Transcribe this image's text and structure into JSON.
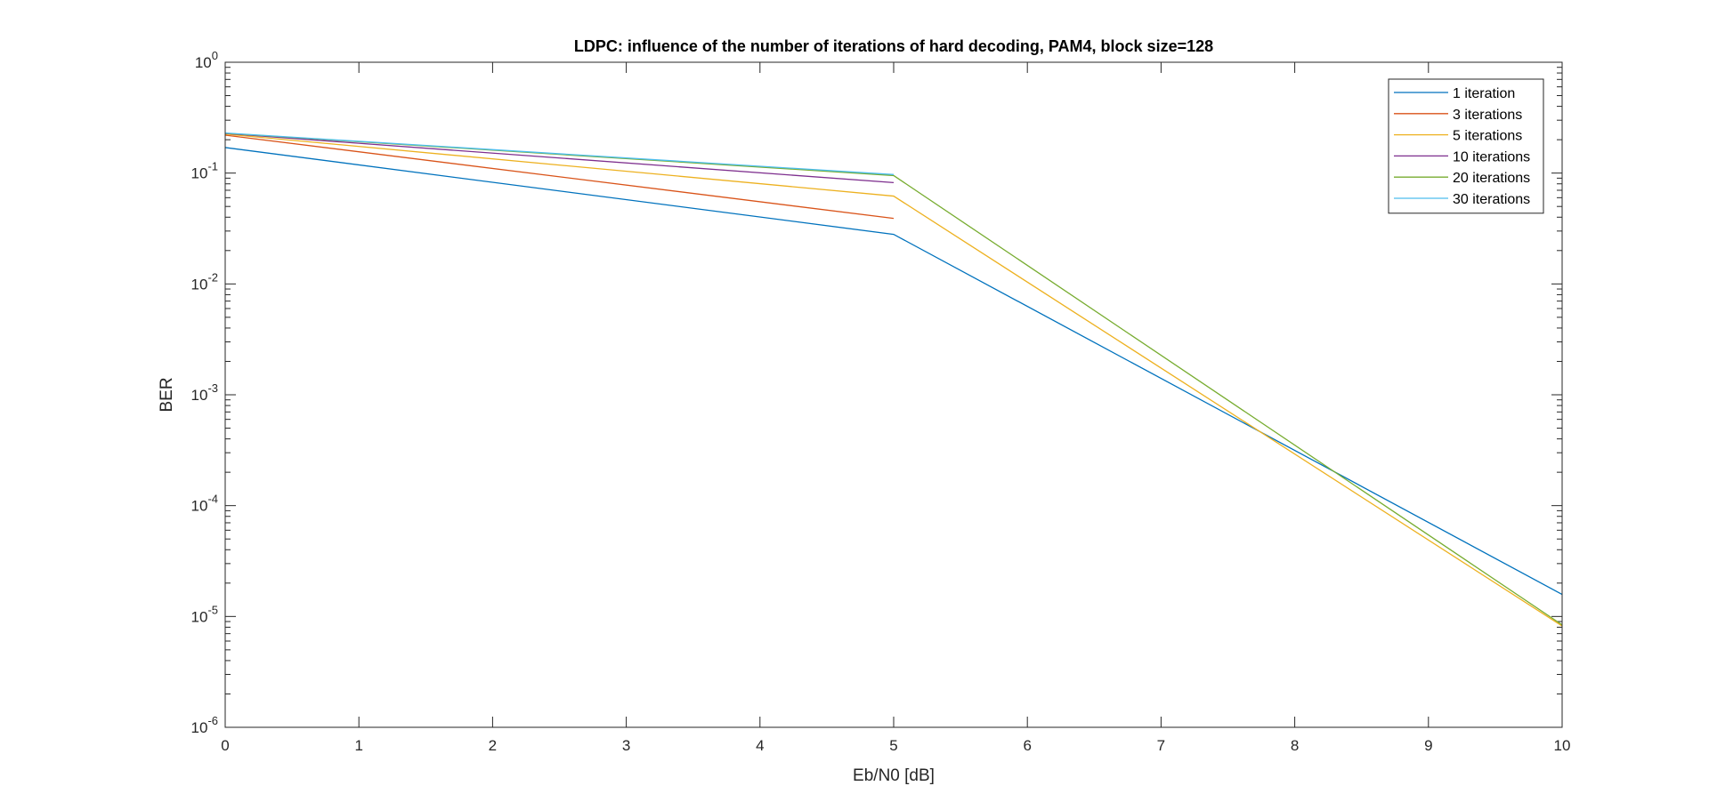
{
  "chart_data": {
    "type": "line",
    "title": "LDPC: influence of the number of iterations of hard decoding, PAM4, block size=128",
    "xlabel": "Eb/N0 [dB]",
    "ylabel": "BER",
    "xlim": [
      0,
      10
    ],
    "ylim": [
      1e-06,
      1
    ],
    "yscale": "log",
    "x_ticks": [
      0,
      1,
      2,
      3,
      4,
      5,
      6,
      7,
      8,
      9,
      10
    ],
    "x_tick_labels": [
      "0",
      "1",
      "2",
      "3",
      "4",
      "5",
      "6",
      "7",
      "8",
      "9",
      "10"
    ],
    "y_tick_exponents": [
      0,
      -1,
      -2,
      -3,
      -4,
      -5,
      -6
    ],
    "y_tick_labels": [
      {
        "base": "10",
        "exp": "0"
      },
      {
        "base": "10",
        "exp": "-1"
      },
      {
        "base": "10",
        "exp": "-2"
      },
      {
        "base": "10",
        "exp": "-3"
      },
      {
        "base": "10",
        "exp": "-4"
      },
      {
        "base": "10",
        "exp": "-5"
      },
      {
        "base": "10",
        "exp": "-6"
      }
    ],
    "grid": false,
    "legend_position": "top-right",
    "series": [
      {
        "name": "1 iteration",
        "color": "#0072BD",
        "x": [
          0,
          5,
          10
        ],
        "y": [
          0.17,
          0.028,
          1.58e-05
        ]
      },
      {
        "name": "3 iterations",
        "color": "#D95319",
        "x": [
          0,
          5
        ],
        "y": [
          0.22,
          0.039
        ]
      },
      {
        "name": "5 iterations",
        "color": "#EDB120",
        "x": [
          0,
          5,
          10
        ],
        "y": [
          0.225,
          0.062,
          8.2e-06
        ]
      },
      {
        "name": "10 iterations",
        "color": "#7E2F8E",
        "x": [
          0,
          5
        ],
        "y": [
          0.228,
          0.082
        ]
      },
      {
        "name": "20 iterations",
        "color": "#77AC30",
        "x": [
          0,
          5,
          10
        ],
        "y": [
          0.229,
          0.095,
          8.4e-06
        ]
      },
      {
        "name": "30 iterations",
        "color": "#4DBEEE",
        "x": [
          0,
          5
        ],
        "y": [
          0.23,
          0.097
        ]
      }
    ]
  }
}
